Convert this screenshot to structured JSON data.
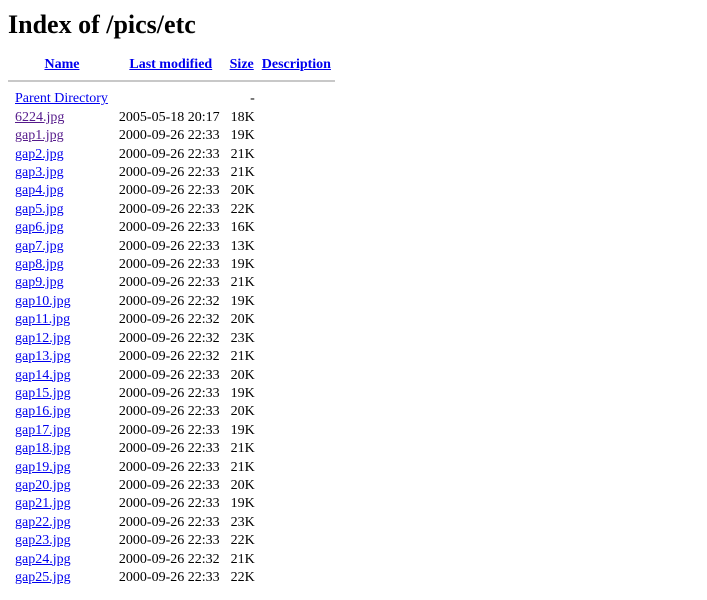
{
  "title": "Index of /pics/etc",
  "headers": {
    "name": "Name",
    "modified": "Last modified",
    "size": "Size",
    "description": "Description"
  },
  "parent": {
    "name": "Parent Directory",
    "size": "-"
  },
  "files": [
    {
      "name": "6224.jpg",
      "modified": "2005-05-18 20:17",
      "size": "18K",
      "visited": true
    },
    {
      "name": "gap1.jpg",
      "modified": "2000-09-26 22:33",
      "size": "19K",
      "visited": true
    },
    {
      "name": "gap2.jpg",
      "modified": "2000-09-26 22:33",
      "size": "21K"
    },
    {
      "name": "gap3.jpg",
      "modified": "2000-09-26 22:33",
      "size": "21K"
    },
    {
      "name": "gap4.jpg",
      "modified": "2000-09-26 22:33",
      "size": "20K"
    },
    {
      "name": "gap5.jpg",
      "modified": "2000-09-26 22:33",
      "size": "22K"
    },
    {
      "name": "gap6.jpg",
      "modified": "2000-09-26 22:33",
      "size": "16K"
    },
    {
      "name": "gap7.jpg",
      "modified": "2000-09-26 22:33",
      "size": "13K"
    },
    {
      "name": "gap8.jpg",
      "modified": "2000-09-26 22:33",
      "size": "19K"
    },
    {
      "name": "gap9.jpg",
      "modified": "2000-09-26 22:33",
      "size": "21K"
    },
    {
      "name": "gap10.jpg",
      "modified": "2000-09-26 22:32",
      "size": "19K"
    },
    {
      "name": "gap11.jpg",
      "modified": "2000-09-26 22:32",
      "size": "20K"
    },
    {
      "name": "gap12.jpg",
      "modified": "2000-09-26 22:32",
      "size": "23K"
    },
    {
      "name": "gap13.jpg",
      "modified": "2000-09-26 22:32",
      "size": "21K"
    },
    {
      "name": "gap14.jpg",
      "modified": "2000-09-26 22:33",
      "size": "20K"
    },
    {
      "name": "gap15.jpg",
      "modified": "2000-09-26 22:33",
      "size": "19K"
    },
    {
      "name": "gap16.jpg",
      "modified": "2000-09-26 22:33",
      "size": "20K"
    },
    {
      "name": "gap17.jpg",
      "modified": "2000-09-26 22:33",
      "size": "19K"
    },
    {
      "name": "gap18.jpg",
      "modified": "2000-09-26 22:33",
      "size": "21K"
    },
    {
      "name": "gap19.jpg",
      "modified": "2000-09-26 22:33",
      "size": "21K"
    },
    {
      "name": "gap20.jpg",
      "modified": "2000-09-26 22:33",
      "size": "20K"
    },
    {
      "name": "gap21.jpg",
      "modified": "2000-09-26 22:33",
      "size": "19K"
    },
    {
      "name": "gap22.jpg",
      "modified": "2000-09-26 22:33",
      "size": "23K"
    },
    {
      "name": "gap23.jpg",
      "modified": "2000-09-26 22:33",
      "size": "22K"
    },
    {
      "name": "gap24.jpg",
      "modified": "2000-09-26 22:32",
      "size": "21K"
    },
    {
      "name": "gap25.jpg",
      "modified": "2000-09-26 22:33",
      "size": "22K"
    }
  ]
}
